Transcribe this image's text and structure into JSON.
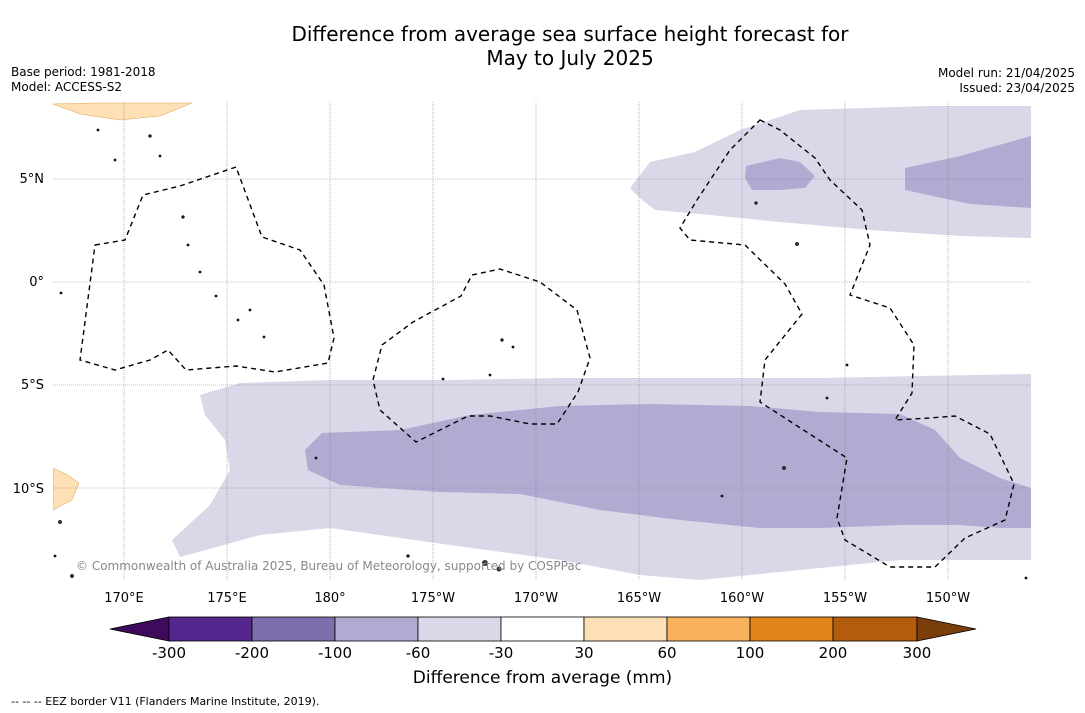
{
  "title_line1": "Difference from average sea surface height forecast for",
  "title_line2": "May to July 2025",
  "meta_left": {
    "base_period": "Base period: 1981-2018",
    "model": "Model: ACCESS-S2"
  },
  "meta_right": {
    "model_run": "Model run: 21/04/2025",
    "issued": "Issued: 23/04/2025"
  },
  "map": {
    "lat_labels": [
      "5°N",
      "0°",
      "5°S",
      "10°S"
    ],
    "lon_labels": [
      "170°E",
      "175°E",
      "180°",
      "175°W",
      "170°W",
      "165°W",
      "160°W",
      "155°W",
      "150°W"
    ],
    "copyright": "© Commonwealth of Australia 2025, Bureau of Meteorology, supported by COSPPac"
  },
  "colorbar": {
    "title": "Difference from average (mm)",
    "tick_labels": [
      "-300",
      "-200",
      "-100",
      "-60",
      "-30",
      "30",
      "60",
      "100",
      "200",
      "300"
    ],
    "colors": [
      "#54278f",
      "#7d6fae",
      "#b1abd2",
      "#d8d8e9",
      "#ffffff",
      "#fde0b6",
      "#f8b25d",
      "#e0841b",
      "#b25c0c"
    ],
    "under_color": "#3f0a5c",
    "over_color": "#7a3d0c"
  },
  "footnote": "--  --  -- EEZ border V11 (Flanders Marine Institute, 2019)."
}
